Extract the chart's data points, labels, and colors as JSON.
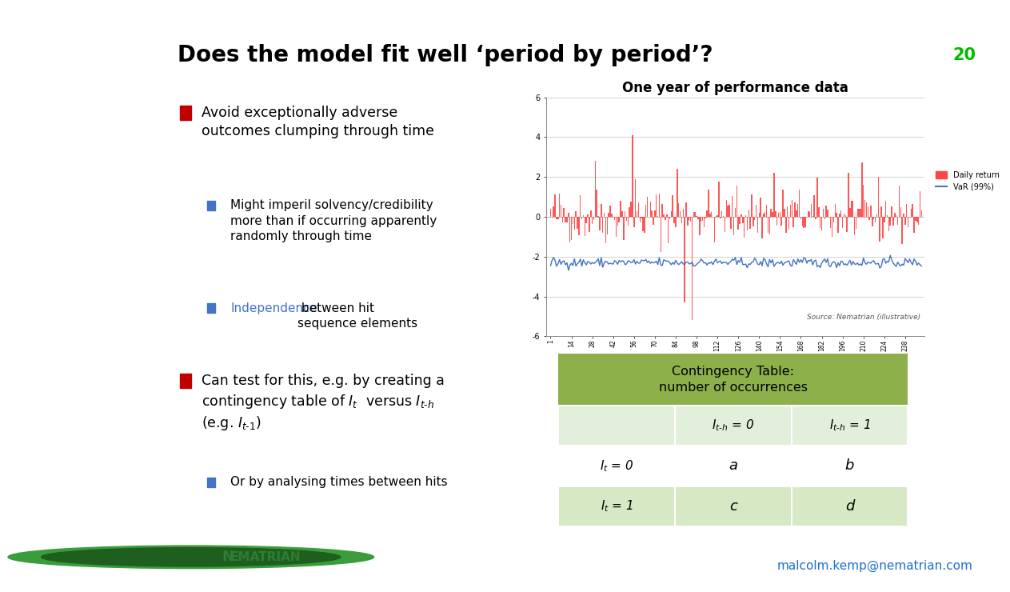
{
  "title": "Does the model fit well ‘period by period’?",
  "slide_number": "20",
  "background_color": "#FFFFFF",
  "title_color": "#000000",
  "title_fontsize": 20,
  "slide_number_color": "#00BB00",
  "top_bar_color": "#4472C4",
  "separator_color": "#4472C4",
  "bullet_color": "#C00000",
  "sub_bullet_color": "#4472C4",
  "chart_title": "One year of performance data",
  "chart_title_fontsize": 12,
  "chart_source": "Source: Nematrian (illustrative)",
  "daily_return_color": "#FF4444",
  "var_color": "#4472C4",
  "legend_daily": "Daily return",
  "legend_var": "VaR (99%)",
  "table_header_bg": "#8DB04A",
  "table_header_text": "#000000",
  "table_cell_bg_row0": "#E2EFDA",
  "table_cell_bg_row1": "#FFFFFF",
  "table_cell_bg_row2": "#D6E8C4",
  "table_title": "Contingency Table:\nnumber of occurrences",
  "nematrian_green": "#2E7D32",
  "email_color": "#1E6FCC",
  "email_text": "malcolm.kemp@nematrian.com",
  "independence_color": "#4472C4"
}
